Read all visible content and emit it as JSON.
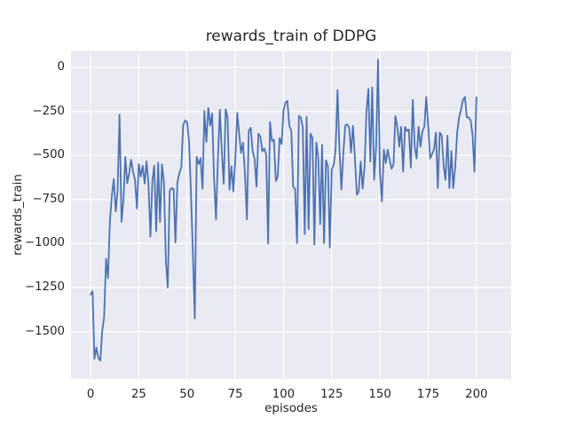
{
  "figure": {
    "background": "#ffffff",
    "axes_background": "#eaeaf2",
    "grid_color": "#ffffff",
    "text_color": "#262626",
    "line_color": "#4c72b0"
  },
  "chart_data": {
    "type": "line",
    "title": "rewards_train of DDPG",
    "xlabel": "episodes",
    "ylabel": "rewards_train",
    "grid": true,
    "legend": null,
    "x_ticks": [
      0,
      25,
      50,
      75,
      100,
      125,
      150,
      175,
      200
    ],
    "y_ticks": [
      0,
      -250,
      -500,
      -750,
      -1000,
      -1250,
      -1500
    ],
    "xlim": [
      -10.1,
      218.1
    ],
    "ylim": [
      -1770,
      93
    ],
    "series": [
      {
        "name": "rewards_train",
        "color": "#4c72b0",
        "x_encoding": "episode index 0..200",
        "values": [
          -1290,
          -1270,
          -1655,
          -1590,
          -1650,
          -1665,
          -1500,
          -1420,
          -1087,
          -1196,
          -877,
          -730,
          -633,
          -818,
          -700,
          -267,
          -877,
          -750,
          -508,
          -657,
          -600,
          -524,
          -591,
          -636,
          -801,
          -549,
          -620,
          -558,
          -659,
          -533,
          -659,
          -961,
          -642,
          -558,
          -930,
          -541,
          -877,
          -550,
          -650,
          -1096,
          -1250,
          -700,
          -685,
          -690,
          -994,
          -650,
          -600,
          -567,
          -327,
          -301,
          -310,
          -420,
          -700,
          -1050,
          -1426,
          -507,
          -549,
          -515,
          -690,
          -247,
          -423,
          -230,
          -330,
          -260,
          -628,
          -864,
          -510,
          -240,
          -477,
          -661,
          -238,
          -280,
          -695,
          -561,
          -704,
          -528,
          -258,
          -376,
          -485,
          -427,
          -608,
          -863,
          -359,
          -342,
          -477,
          -519,
          -678,
          -376,
          -393,
          -477,
          -460,
          -494,
          -1000,
          -310,
          -418,
          -410,
          -645,
          -620,
          -401,
          -435,
          -242,
          -200,
          -190,
          -331,
          -359,
          -678,
          -690,
          -998,
          -275,
          -284,
          -342,
          -947,
          -280,
          -920,
          -376,
          -400,
          -1006,
          -426,
          -510,
          -890,
          -440,
          -998,
          -527,
          -561,
          -1022,
          -578,
          -553,
          -470,
          -130,
          -466,
          -694,
          -492,
          -331,
          -323,
          -341,
          -483,
          -331,
          -517,
          -722,
          -705,
          -534,
          -688,
          -560,
          -252,
          -122,
          -534,
          -113,
          -638,
          -450,
          45,
          -600,
          -760,
          -466,
          -543,
          -466,
          -525,
          -575,
          -551,
          -275,
          -337,
          -450,
          -337,
          -592,
          -337,
          -362,
          -353,
          -568,
          -185,
          -450,
          -517,
          -337,
          -450,
          -362,
          -337,
          -168,
          -337,
          -517,
          -492,
          -466,
          -370,
          -685,
          -370,
          -387,
          -560,
          -638,
          -387,
          -685,
          -475,
          -685,
          -568,
          -370,
          -283,
          -241,
          -185,
          -168,
          -283,
          -283,
          -300,
          -387,
          -592,
          -170
        ]
      }
    ]
  }
}
